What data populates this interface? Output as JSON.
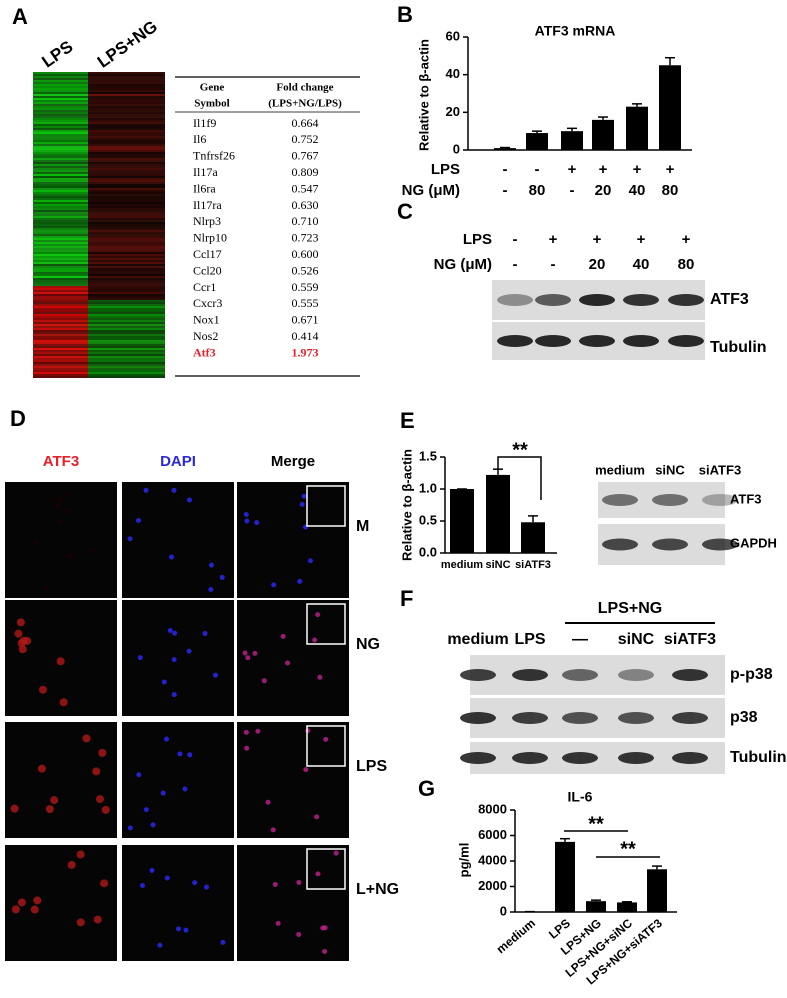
{
  "panel_labels": [
    "A",
    "B",
    "C",
    "D",
    "E",
    "F",
    "G"
  ],
  "heatmap": {
    "columns": [
      "LPS",
      "LPS+NG"
    ]
  },
  "table": {
    "headers": [
      [
        "Gene",
        "Symbol"
      ],
      [
        "Fold change",
        "(LPS+NG/LPS)"
      ]
    ],
    "rows": [
      [
        "Il1f9",
        "0.664"
      ],
      [
        "Il6",
        "0.752"
      ],
      [
        "Tnfrsf26",
        "0.767"
      ],
      [
        "Il17a",
        "0.809"
      ],
      [
        "Il6ra",
        "0.547"
      ],
      [
        "Il17ra",
        "0.630"
      ],
      [
        "Nlrp3",
        "0.710"
      ],
      [
        "Nlrp10",
        "0.723"
      ],
      [
        "Ccl17",
        "0.600"
      ],
      [
        "Ccl20",
        "0.526"
      ],
      [
        "Ccr1",
        "0.559"
      ],
      [
        "Cxcr3",
        "0.555"
      ],
      [
        "Nox1",
        "0.671"
      ],
      [
        "Nos2",
        "0.414"
      ],
      [
        "Atf3",
        "1.973"
      ]
    ]
  },
  "chart_data": [
    {
      "type": "bar",
      "title": "ATF3 mRNA",
      "y_label": "Relative to β-actin",
      "color": "#000000",
      "category_rows": [
        {
          "label": "LPS",
          "values": [
            "-",
            "-",
            "+",
            "+",
            "+",
            "+"
          ]
        },
        {
          "label": "NG (μM)",
          "values": [
            "-",
            "80",
            "-",
            "20",
            "40",
            "80"
          ]
        }
      ],
      "values": [
        1,
        9,
        10,
        16,
        23,
        45
      ],
      "errors": [
        0.3,
        1,
        1.5,
        1.5,
        1.5,
        4
      ],
      "ylim": [
        0,
        60
      ],
      "yticks": [
        0,
        20,
        40,
        60
      ]
    },
    {
      "type": "bar",
      "y_label": "Relative to β-actin",
      "color": "#000000",
      "categories": [
        "medium",
        "siNC",
        "siATF3"
      ],
      "values": [
        1,
        1.22,
        0.48
      ],
      "errors": [
        0,
        0.09,
        0.1
      ],
      "ylim": [
        0,
        1.5
      ],
      "yticks": [
        {
          "value": 0,
          "label": "0.0"
        },
        {
          "value": 0.5,
          "label": "0.5"
        },
        {
          "value": 1,
          "label": "1.0"
        },
        {
          "value": 1.5,
          "label": "1.5"
        }
      ],
      "annotations": [
        "**"
      ]
    },
    {
      "type": "bar",
      "title": "IL-6",
      "y_label": "pg/ml",
      "color": "#000000",
      "categories": [
        "medium",
        "LPS",
        "LPS+NG",
        "LPS+NG+siNC",
        "LPS+NG+siATF3"
      ],
      "values": [
        30,
        5500,
        850,
        750,
        3350
      ],
      "errors": [
        0,
        250,
        80,
        50,
        250
      ],
      "ylim": [
        0,
        8000
      ],
      "yticks": [
        0,
        2000,
        4000,
        6000,
        8000
      ],
      "annotations": [
        "**",
        "**"
      ]
    }
  ],
  "blot_c": {
    "row_labels": [
      "LPS",
      "NG (μM)"
    ],
    "rows": [
      [
        "-",
        "+",
        "+",
        "+",
        "+"
      ],
      [
        "-",
        "-",
        "20",
        "40",
        "80"
      ]
    ],
    "bands": [
      "ATF3",
      "Tubulin"
    ]
  },
  "microscopy": {
    "channels": [
      "ATF3",
      "DAPI",
      "Merge"
    ],
    "conditions": [
      "M",
      "NG",
      "LPS",
      "L+NG"
    ]
  },
  "blot_e": {
    "lanes": [
      "medium",
      "siNC",
      "siATF3"
    ],
    "bands": [
      "ATF3",
      "GAPDH"
    ]
  },
  "blot_f": {
    "group": "LPS+NG",
    "lanes": [
      "medium",
      "LPS",
      "—",
      "siNC",
      "siATF3"
    ],
    "bands": [
      "p-p38",
      "p38",
      "Tubulin"
    ]
  }
}
